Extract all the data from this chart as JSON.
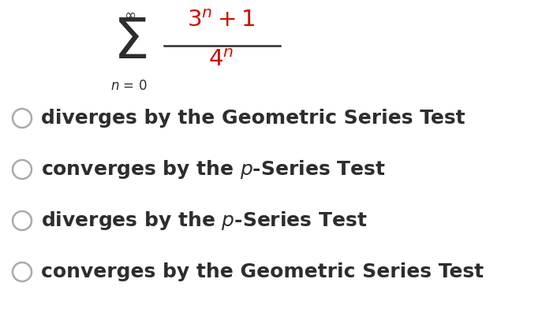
{
  "background_color": "#ffffff",
  "text_color": "#2d2d2d",
  "red_color": "#cc1100",
  "circle_edge_color": "#aaaaaa",
  "options": [
    "diverges by the Geometric Series Test",
    "converges by the $p$-Series Test",
    "diverges by the $p$-Series Test",
    "converges by the Geometric Series Test"
  ],
  "fig_width": 7.06,
  "fig_height": 4.2,
  "dpi": 100
}
